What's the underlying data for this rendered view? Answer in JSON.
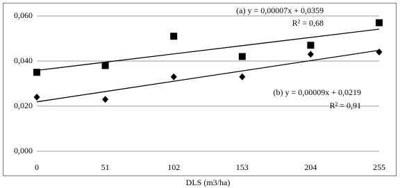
{
  "chart_data": {
    "type": "scatter",
    "x": [
      0,
      51,
      102,
      153,
      204,
      255
    ],
    "series": [
      {
        "color": "#000000",
        "marker": "square",
        "values": [
          0.035,
          0.038,
          0.051,
          0.042,
          0.047,
          0.057
        ]
      },
      {
        "color": "#000000",
        "marker": "diamond",
        "values": [
          0.024,
          0.023,
          0.033,
          0.033,
          0.043,
          0.044
        ]
      }
    ],
    "trendline": "linear",
    "x_label": "DLS (m3/ha)",
    "annotations": [
      "(a) y = 0,00007x + 0,0359",
      "R² = 0,68",
      "(b) y = 0,00009x + 0,0219",
      "R² = 0,91"
    ],
    "xlim": [
      0,
      255
    ],
    "xticks": [
      0,
      51,
      102,
      153,
      204,
      255
    ],
    "ylim": [
      0,
      0.06
    ],
    "yticks": [
      {
        "value": 0,
        "label": "0,000"
      },
      {
        "value": 0.02,
        "label": "0,020"
      },
      {
        "value": 0.04,
        "label": "0,040"
      },
      {
        "value": 0.06,
        "label": "0,060"
      }
    ],
    "grid": true
  }
}
